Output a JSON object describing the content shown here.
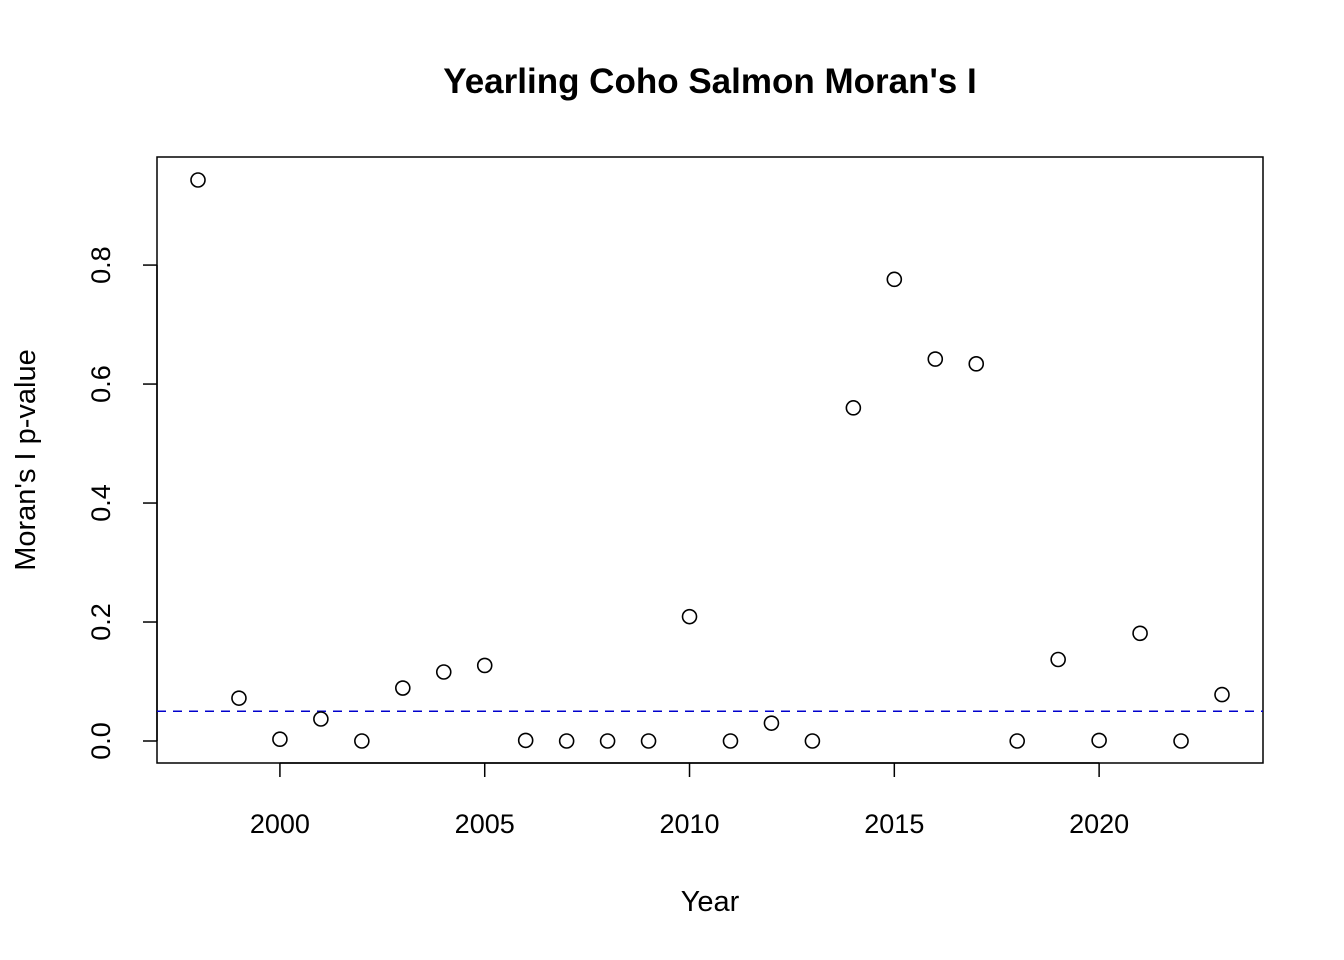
{
  "chart_data": {
    "type": "scatter",
    "title": "Yearling Coho Salmon Moran's I",
    "xlabel": "Year",
    "ylabel": "Moran's I p-value",
    "xlim": [
      1997,
      2024
    ],
    "ylim": [
      0,
      0.95
    ],
    "x_ticks": [
      2000,
      2005,
      2010,
      2015,
      2020
    ],
    "y_ticks": [
      0.0,
      0.2,
      0.4,
      0.6,
      0.8
    ],
    "x_tick_labels": [
      "2000",
      "2005",
      "2010",
      "2015",
      "2020"
    ],
    "y_tick_labels": [
      "0.0",
      "0.2",
      "0.4",
      "0.6",
      "0.8"
    ],
    "reference_line": {
      "y": 0.05,
      "style": "dashed",
      "color": "#0000cc"
    },
    "point_style": "open-circle",
    "grid": false,
    "x": [
      1998,
      1999,
      2000,
      2001,
      2002,
      2003,
      2004,
      2005,
      2006,
      2007,
      2008,
      2009,
      2010,
      2011,
      2012,
      2013,
      2014,
      2015,
      2016,
      2017,
      2018,
      2019,
      2020,
      2021,
      2022,
      2023
    ],
    "y": [
      0.943,
      0.072,
      0.003,
      0.037,
      0.0,
      0.089,
      0.116,
      0.127,
      0.001,
      0.0,
      0.0,
      0.0,
      0.209,
      0.0,
      0.03,
      0.0,
      0.56,
      0.776,
      0.642,
      0.634,
      0.0,
      0.137,
      0.001,
      0.181,
      0.0,
      0.078
    ]
  }
}
